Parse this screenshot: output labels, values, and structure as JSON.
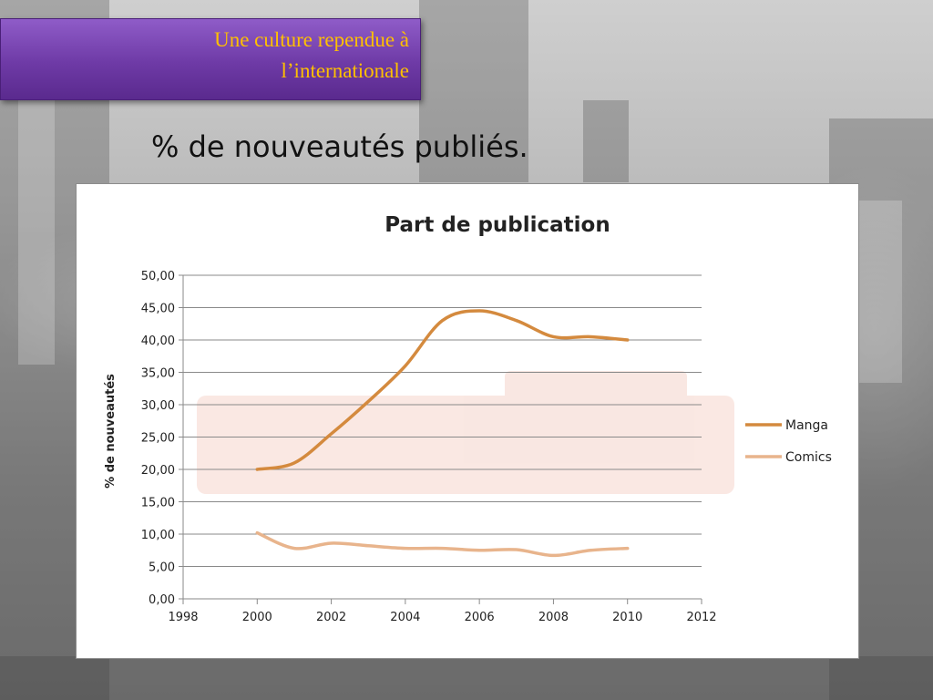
{
  "header": {
    "title_line1": "Une culture rependue à",
    "title_line2": "l’internationale"
  },
  "slide": {
    "title": "% de nouveautés publiés."
  },
  "colors": {
    "manga": "#d48a3e",
    "comics": "#e8b48c",
    "header_bg": "#7a45b3",
    "header_text": "#ffc000"
  },
  "chart_data": {
    "type": "line",
    "title": "Part de publication",
    "xlabel": "",
    "ylabel": "% de nouveautés",
    "xlim": [
      1998,
      2012
    ],
    "ylim": [
      0,
      50
    ],
    "x_ticks": [
      "1998",
      "2000",
      "2002",
      "2004",
      "2006",
      "2008",
      "2010",
      "2012"
    ],
    "y_ticks": [
      "0,00",
      "5,00",
      "10,00",
      "15,00",
      "20,00",
      "25,00",
      "30,00",
      "35,00",
      "40,00",
      "45,00",
      "50,00"
    ],
    "grid": true,
    "legend_position": "right",
    "x": [
      2000,
      2001,
      2002,
      2003,
      2004,
      2005,
      2006,
      2007,
      2008,
      2009,
      2010
    ],
    "series": [
      {
        "name": "Manga",
        "values": [
          20.0,
          21.0,
          25.5,
          30.5,
          36.0,
          43.0,
          44.5,
          43.0,
          40.5,
          40.5,
          40.0
        ]
      },
      {
        "name": "Comics",
        "values": [
          10.2,
          7.8,
          8.6,
          8.2,
          7.8,
          7.8,
          7.5,
          7.6,
          6.7,
          7.5,
          7.8
        ]
      }
    ]
  }
}
